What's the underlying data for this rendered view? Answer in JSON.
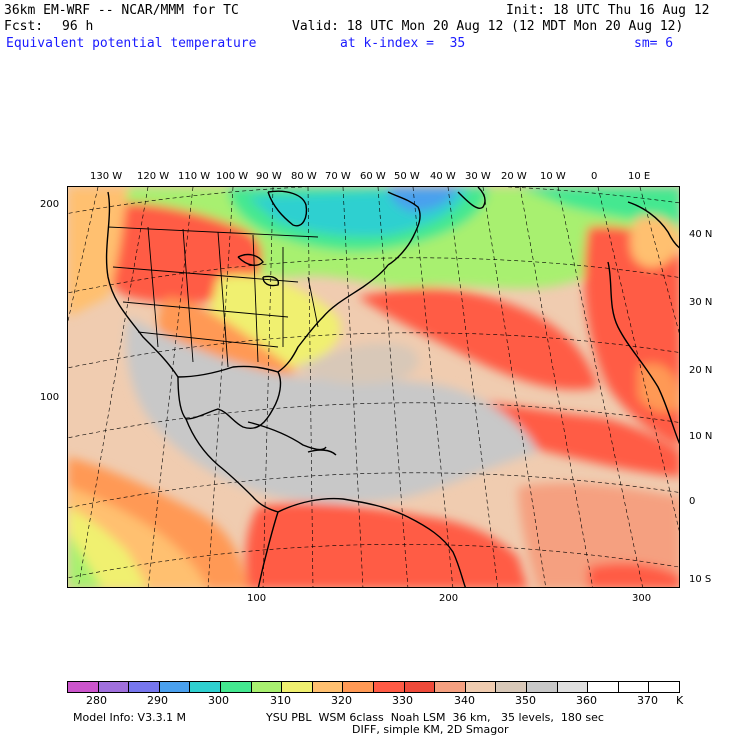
{
  "header": {
    "model": "36km EM-WRF -- NCAR/MMM for TC",
    "init": "Init: 18 UTC Thu 16 Aug 12",
    "fcst_label": "Fcst:",
    "fcst_value": "96 h",
    "valid": "Valid: 18 UTC Mon 20 Aug 12 (12 MDT Mon 20 Aug 12)",
    "field": "Equivalent potential temperature",
    "level": "at k-index =  35",
    "smoothing": "sm= 6"
  },
  "map": {
    "top_lon_labels": [
      "130 W",
      "120 W",
      "110 W",
      "100 W",
      "90 W",
      "80 W",
      "70 W",
      "60 W",
      "50 W",
      "40 W",
      "30 W",
      "20 W",
      "10 W",
      "0",
      "10 E"
    ],
    "right_lat_labels": [
      "40 N",
      "30 N",
      "20 N",
      "10 N",
      "0",
      "10 S"
    ],
    "left_grid_labels": [
      "200",
      "100"
    ],
    "bottom_grid_labels": [
      "100",
      "200",
      "300"
    ]
  },
  "legend": {
    "colors": [
      "#cc55cc",
      "#a070dd",
      "#7777ee",
      "#4aa0ee",
      "#2fd0d0",
      "#44e890",
      "#a8f070",
      "#f0f070",
      "#ffc070",
      "#ff9955",
      "#ff5b45",
      "#ee4a3a",
      "#f5a080",
      "#f0ccb0",
      "#d8c8b8",
      "#c8c8c8",
      "#e0e0e0",
      "#ffffff",
      "#ffffff",
      "#ffffff"
    ],
    "tick_labels": [
      "280",
      "290",
      "300",
      "310",
      "320",
      "330",
      "340",
      "350",
      "360",
      "370"
    ],
    "units": "K"
  },
  "footer": {
    "info": "Model Info: V3.3.1 M",
    "physics": "YSU PBL  WSM 6class  Noah LSM  36 km,   35 levels,  180 sec",
    "diff": "DIFF, simple KM, 2D Smagor"
  }
}
